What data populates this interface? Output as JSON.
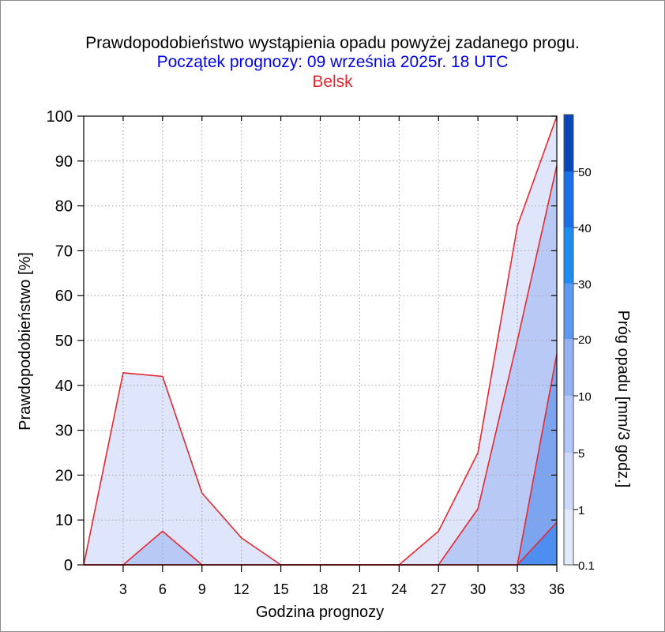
{
  "title": "Prawdopodobieństwo wystąpienia opadu powyżej zadanego progu.",
  "subtitle": "Początek prognozy: 09 września 2025r. 18 UTC",
  "location": "Belsk",
  "colors": {
    "title": "#000000",
    "subtitle": "#0000ee",
    "location": "#e5282f",
    "outline": "#e5282f"
  },
  "chart_data": {
    "type": "area",
    "xlabel": "Godzina prognozy",
    "ylabel": "Prawdopodobieństwo [%]",
    "x": [
      0,
      3,
      6,
      9,
      12,
      15,
      18,
      21,
      24,
      27,
      30,
      33,
      36
    ],
    "xticks": [
      "3",
      "6",
      "9",
      "12",
      "15",
      "18",
      "21",
      "24",
      "27",
      "30",
      "33",
      "36"
    ],
    "xlim": [
      0,
      36
    ],
    "ylim": [
      0,
      100
    ],
    "yticks": [
      "0",
      "10",
      "20",
      "30",
      "40",
      "50",
      "60",
      "70",
      "80",
      "90",
      "100"
    ],
    "grid": true,
    "series": [
      {
        "name": "0.1",
        "color": "#dfe5fb",
        "values": [
          0,
          42.8,
          42,
          16,
          6,
          0,
          0,
          0,
          0,
          7.5,
          25,
          75.5,
          100
        ]
      },
      {
        "name": "1",
        "color": "#b9c9f6",
        "values": [
          0,
          0,
          7.5,
          0,
          0,
          0,
          0,
          0,
          0,
          0,
          12.5,
          50,
          89
        ]
      },
      {
        "name": "5",
        "color": "#7ca4ef",
        "values": [
          0,
          0,
          0,
          0,
          0,
          0,
          0,
          0,
          0,
          0,
          0,
          0,
          47
        ]
      },
      {
        "name": "10",
        "color": "#4e8ef0",
        "values": [
          0,
          0,
          0,
          0,
          0,
          0,
          0,
          0,
          0,
          0,
          0,
          0,
          9.5
        ]
      }
    ],
    "colorbar": {
      "label": "Próg opadu [mm/3 godz.]",
      "tick_labels": [
        "0.1",
        "1",
        "5",
        "10",
        "20",
        "30",
        "40",
        "50"
      ],
      "colors": [
        "#e3e9fc",
        "#cdd9fa",
        "#b4c8f7",
        "#94b2f3",
        "#5d98f0",
        "#1e8df0",
        "#1a70e6",
        "#1058d2",
        "#0845b8"
      ]
    }
  }
}
